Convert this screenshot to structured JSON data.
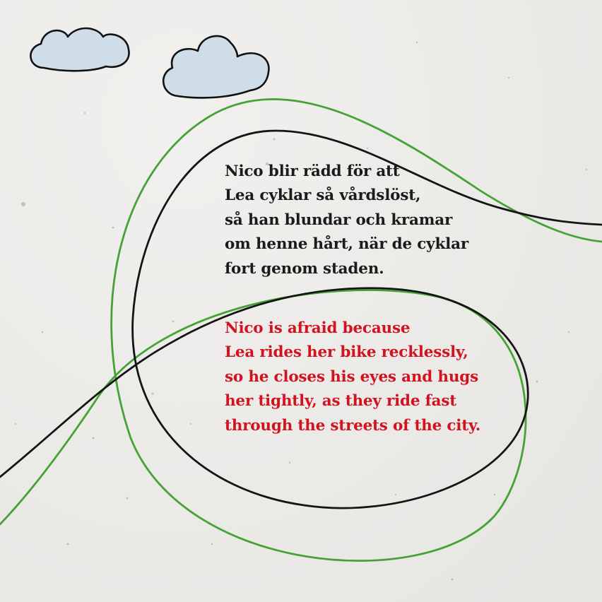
{
  "colors": {
    "background": "#ecebe8",
    "swedish_text": "#1b1b1b",
    "english_text": "#d2131f",
    "black_line": "#141414",
    "green_line": "#45a335",
    "cloud_fill": "#cfdde9",
    "cloud_outline": "#111111"
  },
  "illustration": {
    "elements": [
      "cloud-left",
      "cloud-right",
      "black-loop-line",
      "green-loop-line"
    ]
  },
  "swedish_text": {
    "lines": [
      "Nico blir rädd för att",
      "Lea cyklar så vårdslöst,",
      "så han blundar och kramar",
      "om henne hårt, när de cyklar",
      "fort genom staden."
    ]
  },
  "english_text": {
    "lines": [
      "Nico is afraid because",
      "Lea rides her bike recklessly,",
      "so he closes his eyes and hugs",
      "her tightly, as they ride fast",
      "through the streets of the city."
    ]
  }
}
